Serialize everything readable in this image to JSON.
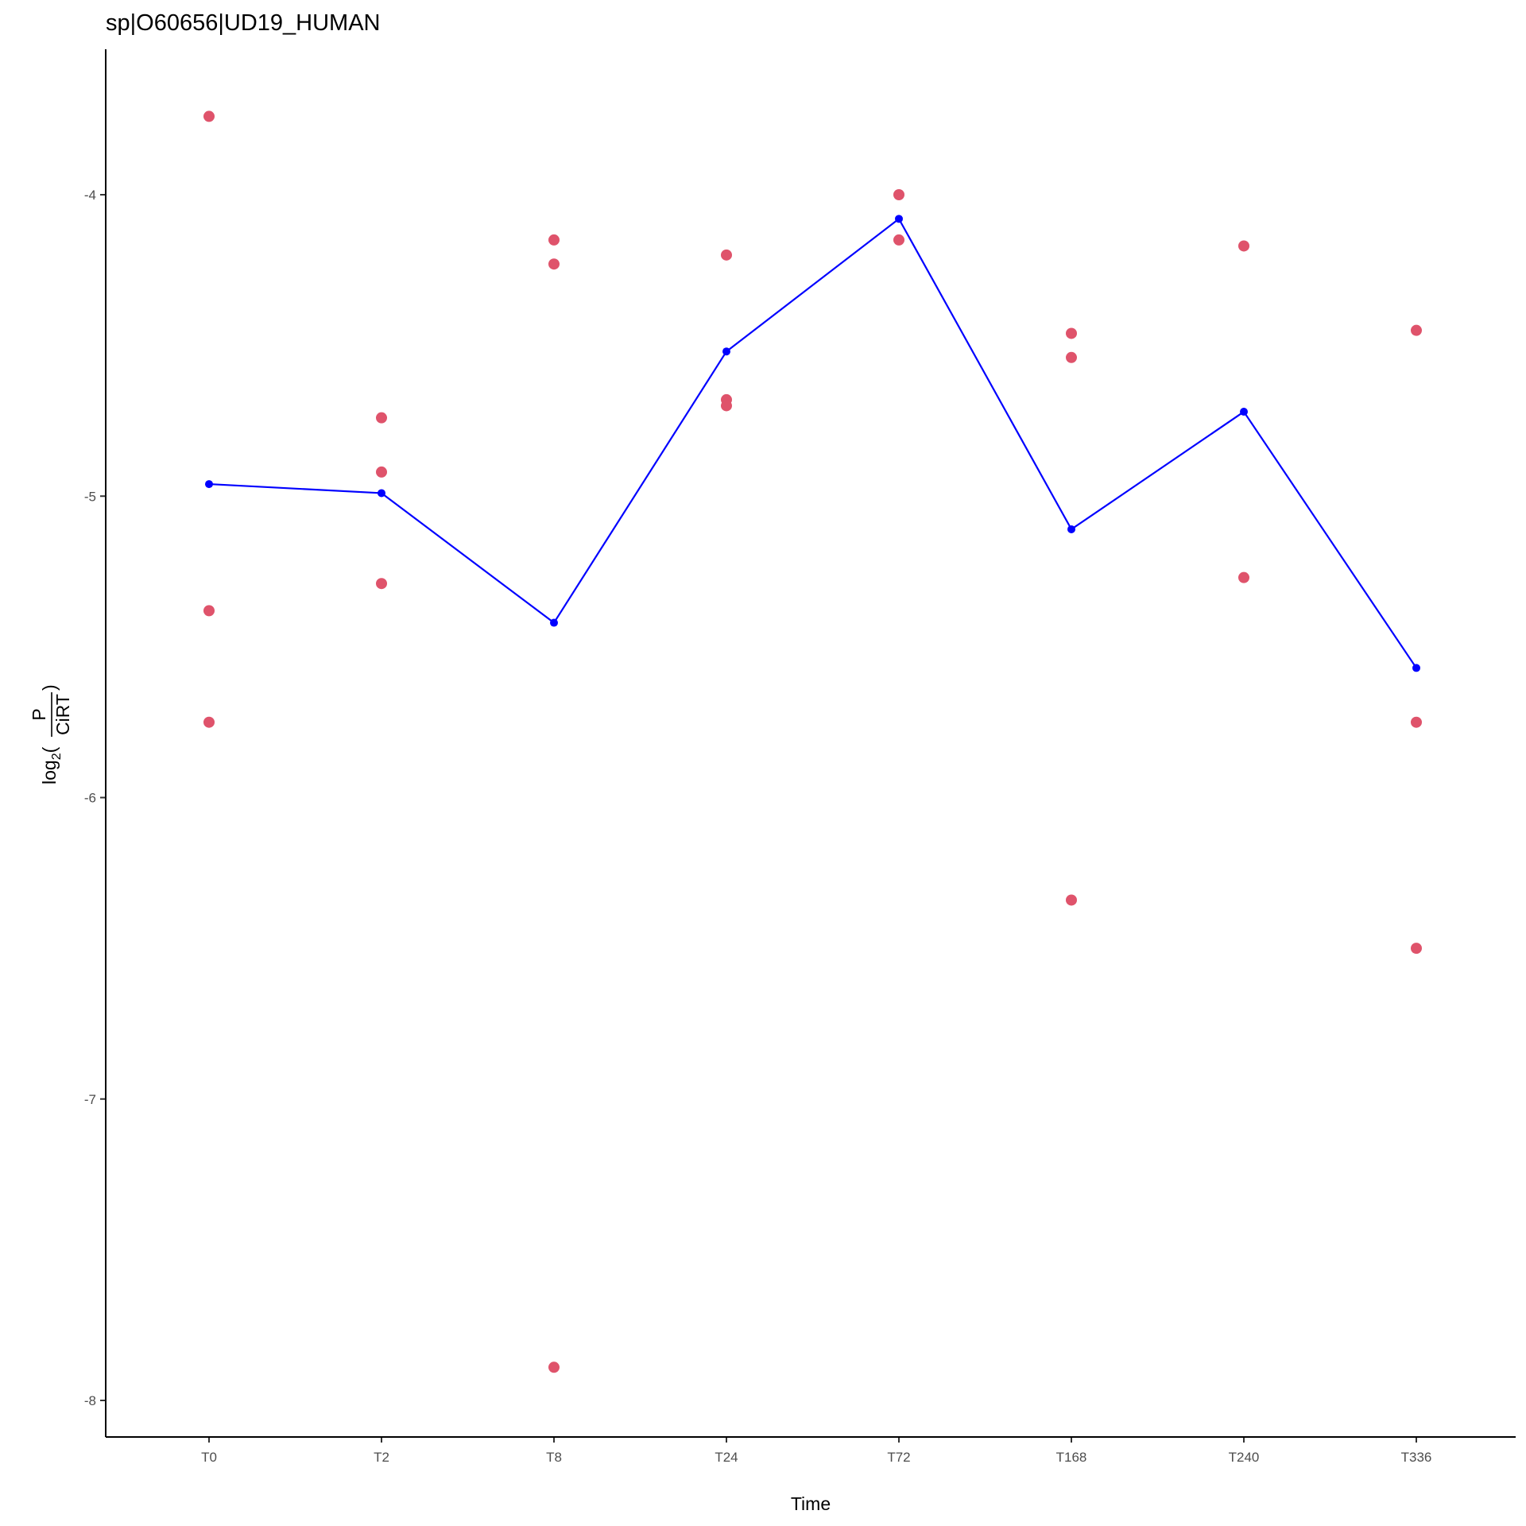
{
  "chart_data": {
    "type": "scatter",
    "title": "sp|O60656|UD19_HUMAN",
    "xlabel": "Time",
    "ylabel": {
      "prefix": "log",
      "subscript": "2",
      "numerator": "P",
      "denominator": "CiRT"
    },
    "categories": [
      "T0",
      "T2",
      "T8",
      "T24",
      "T72",
      "T168",
      "T240",
      "T336"
    ],
    "ylim": [
      -8.1,
      -3.47
    ],
    "yticks": [
      -4,
      -5,
      -6,
      -7,
      -8
    ],
    "grid": false,
    "legend": "none",
    "series": [
      {
        "kind": "points",
        "color": "#DF536B",
        "points": [
          {
            "x": "T0",
            "y": -3.74
          },
          {
            "x": "T0",
            "y": -5.38
          },
          {
            "x": "T0",
            "y": -5.75
          },
          {
            "x": "T2",
            "y": -4.74
          },
          {
            "x": "T2",
            "y": -4.92
          },
          {
            "x": "T2",
            "y": -5.29
          },
          {
            "x": "T8",
            "y": -4.15
          },
          {
            "x": "T8",
            "y": -4.23
          },
          {
            "x": "T8",
            "y": -7.89
          },
          {
            "x": "T24",
            "y": -4.2
          },
          {
            "x": "T24",
            "y": -4.68
          },
          {
            "x": "T24",
            "y": -4.7
          },
          {
            "x": "T72",
            "y": -4.0
          },
          {
            "x": "T72",
            "y": -4.15
          },
          {
            "x": "T168",
            "y": -4.46
          },
          {
            "x": "T168",
            "y": -4.54
          },
          {
            "x": "T168",
            "y": -6.34
          },
          {
            "x": "T240",
            "y": -4.17
          },
          {
            "x": "T240",
            "y": -5.27
          },
          {
            "x": "T336",
            "y": -4.45
          },
          {
            "x": "T336",
            "y": -5.75
          },
          {
            "x": "T336",
            "y": -6.5
          }
        ]
      },
      {
        "kind": "line",
        "color": "#0000FF",
        "values": [
          -4.96,
          -4.99,
          -5.42,
          -4.52,
          -4.08,
          -5.11,
          -4.72,
          -5.57
        ]
      }
    ]
  }
}
